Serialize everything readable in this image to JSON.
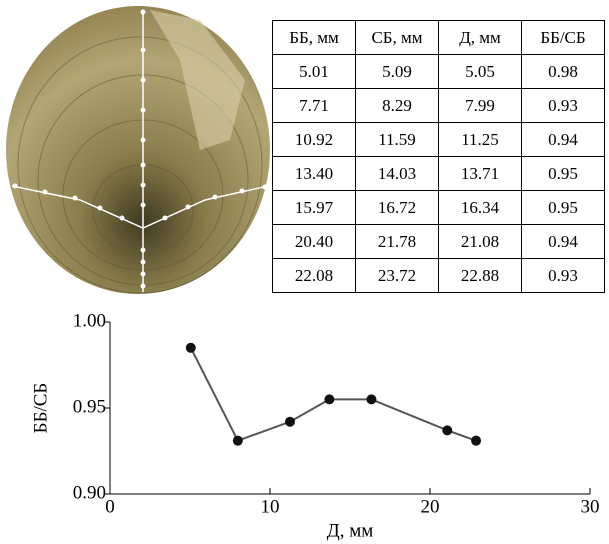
{
  "table": {
    "header": [
      "ББ, мм",
      "СБ, мм",
      "Д, мм",
      "ББ/СБ"
    ],
    "rows": [
      [
        "5.01",
        "5.09",
        "5.05",
        "0.98"
      ],
      [
        "7.71",
        "8.29",
        "7.99",
        "0.93"
      ],
      [
        "10.92",
        "11.59",
        "11.25",
        "0.94"
      ],
      [
        "13.40",
        "14.03",
        "13.71",
        "0.95"
      ],
      [
        "15.97",
        "16.72",
        "16.34",
        "0.95"
      ],
      [
        "20.40",
        "21.78",
        "21.08",
        "0.94"
      ],
      [
        "22.08",
        "23.72",
        "22.88",
        "0.93"
      ]
    ]
  },
  "chart_data": {
    "type": "line",
    "x_label": "Д, мм",
    "y_label": "ББ/СБ",
    "x": [
      5.05,
      7.99,
      11.25,
      13.71,
      16.34,
      21.08,
      22.88
    ],
    "series": [
      {
        "color": "#555555",
        "values": [
          0.985,
          0.931,
          0.942,
          0.955,
          0.955,
          0.937,
          0.931
        ]
      }
    ],
    "xlim": [
      0,
      30
    ],
    "xticks": [
      0,
      10,
      20,
      30
    ],
    "ylim": [
      0.9,
      1.0
    ],
    "yticks": [
      {
        "value": 0.9,
        "label": "0.90"
      },
      0.95,
      {
        "value": 1.0,
        "label": "1.00"
      }
    ]
  }
}
